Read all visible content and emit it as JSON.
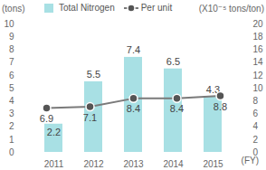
{
  "chart_data": {
    "type": "bar",
    "categories": [
      "2011",
      "2012",
      "2013",
      "2014",
      "2015"
    ],
    "x_label": "(FY)",
    "y_label": "(tons)",
    "y2_label": "(X10⁻⁵ tons/ton)",
    "series": [
      {
        "name": "Total Nitrogen",
        "type": "bar",
        "color": "#a8e0e4",
        "values": [
          2.2,
          5.5,
          7.4,
          6.5,
          4.3
        ]
      },
      {
        "name": "Per unit",
        "type": "line",
        "axis": "y2",
        "color": "#7a7a7a",
        "marker": "circle",
        "values": [
          6.9,
          7.1,
          8.4,
          8.4,
          8.8
        ]
      }
    ],
    "ylim": [
      0,
      10
    ],
    "yticks": [
      0,
      1,
      2,
      3,
      4,
      5,
      6,
      7,
      8,
      9,
      10
    ],
    "y2lim": [
      0,
      20
    ],
    "y2ticks": [
      0,
      2,
      4,
      6,
      8,
      10,
      12,
      14,
      16,
      18,
      20
    ],
    "data_labels": true,
    "legend": "top-left",
    "grid": false
  }
}
